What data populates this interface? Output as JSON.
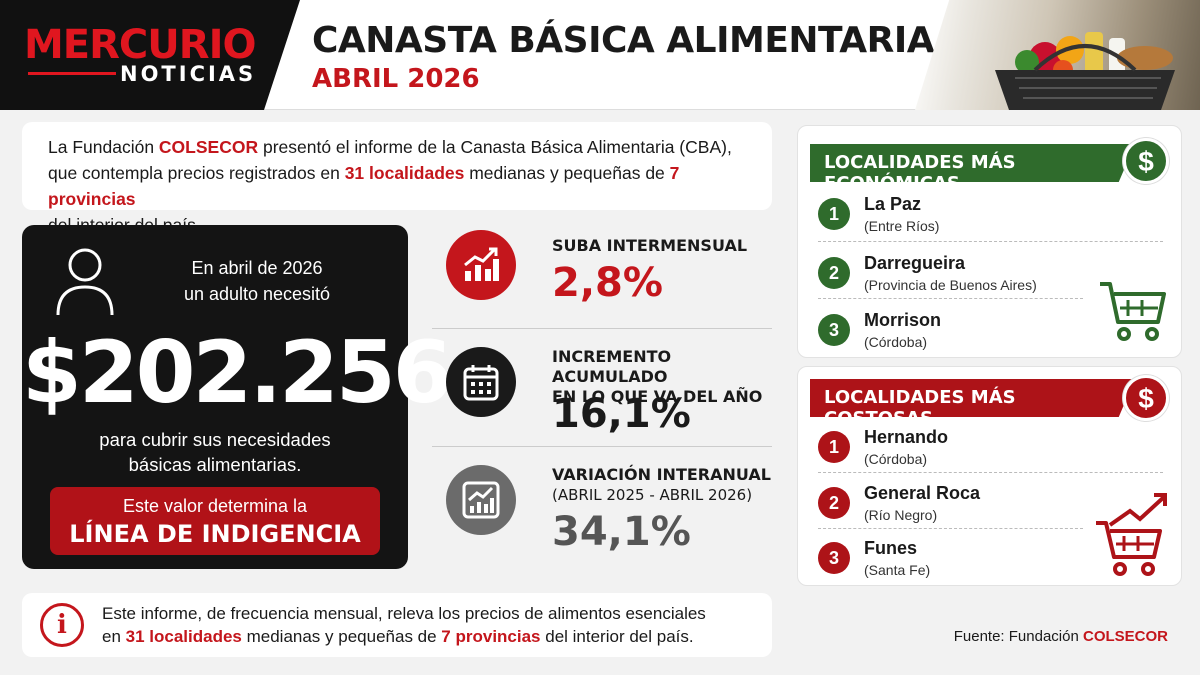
{
  "header": {
    "logo_main": "MERCURIO",
    "logo_sub": "NOTICIAS",
    "title": "CANASTA BÁSICA ALIMENTARIA (CBA)",
    "subtitle": "ABRIL 2026"
  },
  "intro": {
    "t1": "La Fundación ",
    "org": "COLSECOR",
    "t2": " presentó el informe de la Canasta Básica Alimentaria (CBA),",
    "t3": "que contempla precios registrados en ",
    "localities": "31 localidades",
    "t4": " medianas y pequeñas de ",
    "provinces": "7 provincias",
    "t5": "del interior del país."
  },
  "main_card": {
    "top_line1": "En abril de 2026",
    "top_line2": "un adulto necesitó",
    "amount": "$202.256",
    "desc_line1": "para cubrir sus necesidades",
    "desc_line2": "básicas alimentarias.",
    "button_line1": "Este valor determina la",
    "button_line2": "LÍNEA DE INDIGENCIA"
  },
  "stats": [
    {
      "label": "SUBA INTERMENSUAL",
      "sub": "",
      "value": "2,8%",
      "icon": "growth-chart-icon"
    },
    {
      "label": "INCREMENTO ACUMULADO",
      "label2": "EN LO QUE VA DEL AÑO",
      "value": "16,1%",
      "icon": "calendar-icon"
    },
    {
      "label": "VARIACIÓN INTERANUAL",
      "sub": "(ABRIL 2025 - ABRIL 2026)",
      "value": "34,1%",
      "icon": "trend-chart-icon"
    }
  ],
  "cheapest": {
    "title": "LOCALIDADES MÁS ECONÓMICAS",
    "symbol": "$",
    "items": [
      {
        "num": "1",
        "name": "La Paz",
        "province": "(Entre Ríos)"
      },
      {
        "num": "2",
        "name": "Darregueira",
        "province": "(Provincia de Buenos Aires)"
      },
      {
        "num": "3",
        "name": "Morrison",
        "province": "(Córdoba)"
      }
    ],
    "color": "#2f6b2c"
  },
  "costliest": {
    "title": "LOCALIDADES MÁS COSTOSAS",
    "symbol": "$",
    "items": [
      {
        "num": "1",
        "name": "Hernando",
        "province": "(Córdoba)"
      },
      {
        "num": "2",
        "name": "General Roca",
        "province": "(Río Negro)"
      },
      {
        "num": "3",
        "name": "Funes",
        "province": "(Santa Fe)"
      }
    ],
    "color": "#ad1318"
  },
  "info": {
    "icon_glyph": "i",
    "t1": "Este informe, de frecuencia mensual,  releva los precios de alimentos esenciales",
    "t2": "en ",
    "localities": "31 localidades",
    "t3": " medianas y pequeñas de ",
    "provinces": "7 provincias",
    "t4": " del interior del país."
  },
  "source": {
    "label": "Fuente: Fundación ",
    "org": "COLSECOR"
  }
}
